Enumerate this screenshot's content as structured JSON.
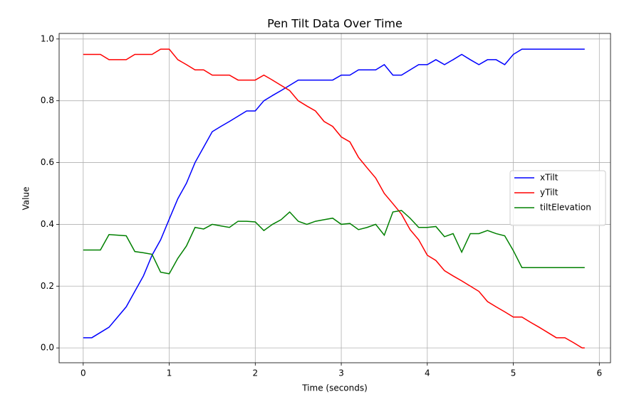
{
  "chart_data": {
    "type": "line",
    "title": "Pen Tilt Data Over Time",
    "xlabel": "Time (seconds)",
    "ylabel": "Value",
    "x": [
      0,
      0.1,
      0.2,
      0.3,
      0.4,
      0.5,
      0.6,
      0.7,
      0.8,
      0.9,
      1.0,
      1.1,
      1.2,
      1.3,
      1.4,
      1.5,
      1.6,
      1.7,
      1.8,
      1.9,
      2.0,
      2.1,
      2.2,
      2.3,
      2.4,
      2.5,
      2.6,
      2.7,
      2.8,
      2.9,
      3.0,
      3.1,
      3.2,
      3.3,
      3.4,
      3.5,
      3.6,
      3.7,
      3.8,
      3.9,
      4.0,
      4.1,
      4.2,
      4.3,
      4.4,
      4.5,
      4.6,
      4.7,
      4.8,
      4.9,
      5.0,
      5.1,
      5.2,
      5.3,
      5.4,
      5.5,
      5.6,
      5.7,
      5.8,
      5.83
    ],
    "series": [
      {
        "name": "xTilt",
        "color": "#0000ff",
        "values": [
          0.033,
          0.033,
          0.05,
          0.067,
          0.1,
          0.133,
          0.183,
          0.233,
          0.3,
          0.35,
          0.417,
          0.483,
          0.533,
          0.6,
          0.65,
          0.7,
          0.717,
          0.733,
          0.75,
          0.767,
          0.767,
          0.8,
          0.817,
          0.833,
          0.85,
          0.867,
          0.867,
          0.867,
          0.867,
          0.867,
          0.883,
          0.883,
          0.9,
          0.9,
          0.9,
          0.917,
          0.883,
          0.883,
          0.9,
          0.917,
          0.917,
          0.933,
          0.917,
          0.933,
          0.95,
          0.933,
          0.917,
          0.933,
          0.933,
          0.917,
          0.95,
          0.967,
          0.967,
          0.967,
          0.967,
          0.967,
          0.967,
          0.967,
          0.967,
          0.967
        ]
      },
      {
        "name": "yTilt",
        "color": "#ff0000",
        "values": [
          0.95,
          0.95,
          0.95,
          0.933,
          0.933,
          0.933,
          0.95,
          0.95,
          0.95,
          0.967,
          0.967,
          0.933,
          0.917,
          0.9,
          0.9,
          0.883,
          0.883,
          0.883,
          0.867,
          0.867,
          0.867,
          0.883,
          0.867,
          0.85,
          0.833,
          0.8,
          0.783,
          0.767,
          0.733,
          0.717,
          0.683,
          0.667,
          0.617,
          0.583,
          0.55,
          0.5,
          0.467,
          0.433,
          0.383,
          0.35,
          0.3,
          0.283,
          0.25,
          0.233,
          0.217,
          0.2,
          0.183,
          0.15,
          0.133,
          0.117,
          0.1,
          0.1,
          0.083,
          0.067,
          0.05,
          0.033,
          0.033,
          0.017,
          0,
          0
        ]
      },
      {
        "name": "tiltElevation",
        "color": "#008000",
        "values": [
          0.317,
          0.317,
          0.317,
          0.367,
          0.365,
          0.363,
          0.312,
          0.308,
          0.303,
          0.245,
          0.24,
          0.29,
          0.33,
          0.39,
          0.385,
          0.4,
          0.395,
          0.39,
          0.41,
          0.41,
          0.408,
          0.38,
          0.4,
          0.415,
          0.44,
          0.41,
          0.4,
          0.41,
          0.415,
          0.42,
          0.4,
          0.403,
          0.383,
          0.39,
          0.4,
          0.365,
          0.44,
          0.445,
          0.42,
          0.39,
          0.39,
          0.393,
          0.36,
          0.37,
          0.31,
          0.37,
          0.37,
          0.38,
          0.37,
          0.363,
          0.315,
          0.26,
          0.26,
          0.26,
          0.26,
          0.26,
          0.26,
          0.26,
          0.26,
          0.26
        ]
      }
    ],
    "xlim": [
      -0.28,
      6.13
    ],
    "ylim": [
      -0.048,
      1.018
    ],
    "xticks": [
      0,
      1,
      2,
      3,
      4,
      5,
      6
    ],
    "yticks": [
      {
        "value": 0,
        "label": "0.0"
      },
      0.2,
      0.4,
      0.6,
      0.8,
      {
        "value": 1,
        "label": "1.0"
      }
    ],
    "grid": true,
    "legend": "center right"
  }
}
